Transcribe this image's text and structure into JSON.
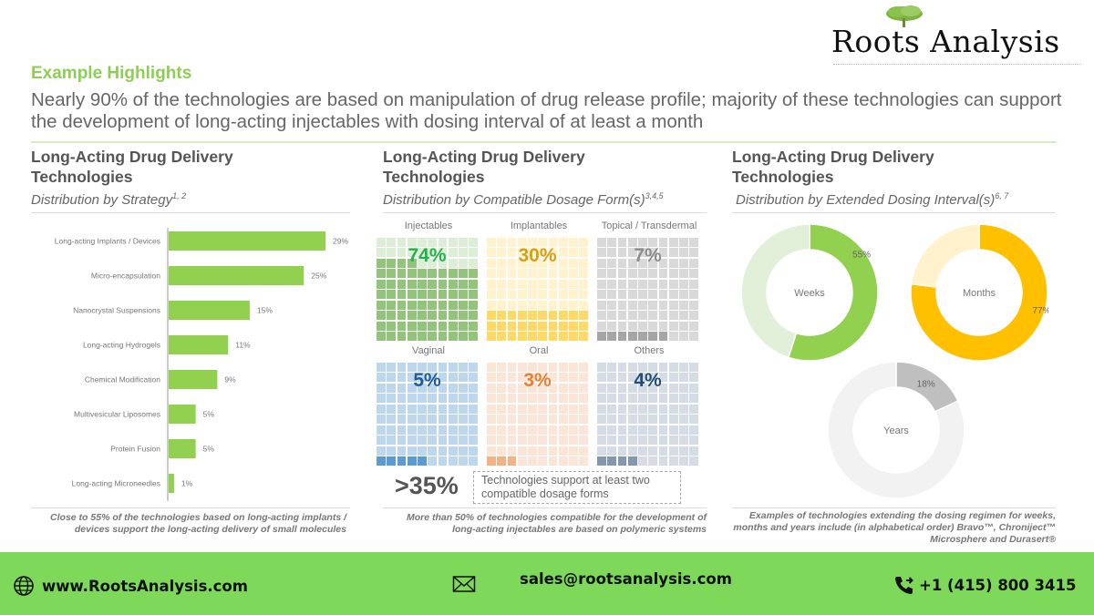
{
  "brand": {
    "name": "Roots Analysis",
    "icon": "tree-logo-icon"
  },
  "header": {
    "eyebrow": "Example Highlights",
    "headline": "Nearly 90% of the technologies are based on manipulation of drug release profile; majority of these technologies can support the development of long-acting injectables with dosing interval of at least a month"
  },
  "panels": [
    {
      "title": "Long-Acting Drug Delivery Technologies",
      "subtitle": "Distribution by Strategy",
      "footnote": "1, 2",
      "note": "Close to 55% of the technologies  based on long-acting implants  / devices support the long-acting delivery of small molecules"
    },
    {
      "title": "Long-Acting Drug Delivery Technologies",
      "subtitle": "Distribution by Compatible Dosage Form(s)",
      "footnote": "3,4,5",
      "big_stat": ">35%",
      "stat_text": "Technologies support at least two compatible  dosage forms",
      "note": "More than 50% of  technologies  compatible  for the development  of long-acting  injectables  are based on polymeric  systems"
    },
    {
      "title": "Long-Acting Drug Delivery Technologies",
      "subtitle": "Distribution by Extended Dosing Interval(s)",
      "footnote": "6, 7",
      "note": "Examples  of technologies  extending  the dosing regimen for weeks, months and years include  (in alphabetical  order) Bravo™, Chroniject™ Microsphere and Durasert®"
    }
  ],
  "chart_data": [
    {
      "type": "bar",
      "orientation": "horizontal",
      "title": "Distribution by Strategy",
      "categories": [
        "Long-acting Implants / Devices",
        "Micro-encapsulation",
        "Nanocrystal Suspensions",
        "Long-acting Hydrogels",
        "Chemical Modification",
        "Multivesicular Liposomes",
        "Protein Fusion",
        "Long-acting Microneedles"
      ],
      "values": [
        29,
        25,
        15,
        11,
        9,
        5,
        5,
        1
      ],
      "value_labels": [
        "29%",
        "25%",
        "15%",
        "11%",
        "9%",
        "5%",
        "5%",
        "1%"
      ],
      "unit": "%",
      "color": "#92d050",
      "grid": false
    },
    {
      "type": "waffle",
      "title": "Distribution by Compatible Dosage Form(s)",
      "grid_size": [
        10,
        10
      ],
      "categories": [
        {
          "name": "Injectables",
          "value": 74,
          "label": "74%",
          "fill": "#92c47c",
          "empty": "#dcefd6",
          "text": "#22b14c"
        },
        {
          "name": "Implantables",
          "value": 30,
          "label": "30%",
          "fill": "#ffd966",
          "empty": "#fff2cc",
          "text": "#d4a017"
        },
        {
          "name": "Topical / Transdermal",
          "value": 7,
          "label": "7%",
          "fill": "#a6a6a6",
          "empty": "#d9d9d9",
          "text": "#8c8c8c"
        },
        {
          "name": "Vaginal",
          "value": 5,
          "label": "5%",
          "fill": "#5b9bd5",
          "empty": "#bdd7ee",
          "text": "#1f5c99"
        },
        {
          "name": "Oral",
          "value": 3,
          "label": "3%",
          "fill": "#f4b183",
          "empty": "#fbe5d6",
          "text": "#ed7d31"
        },
        {
          "name": "Others",
          "value": 4,
          "label": "4%",
          "fill": "#8497b0",
          "empty": "#d6dce5",
          "text": "#1f4e79"
        }
      ]
    },
    {
      "type": "pie",
      "variant": "donut",
      "title": "Distribution by Extended Dosing Interval(s)",
      "donuts": [
        {
          "name": "Weeks",
          "value": 55,
          "label": "55%",
          "color": "#92d050",
          "rest_color": "#e2f0d9"
        },
        {
          "name": "Months",
          "value": 77,
          "label": "77%",
          "color": "#ffc000",
          "rest_color": "#fff2cc"
        },
        {
          "name": "Years",
          "value": 18,
          "label": "18%",
          "color": "#bfbfbf",
          "rest_color": "#f2f2f2"
        }
      ]
    }
  ],
  "footer": {
    "website": "www.RootsAnalysis.com",
    "email": "sales@rootsanalysis.com",
    "phone": "+1 (415) 800 3415",
    "background": "#7ed95b"
  }
}
